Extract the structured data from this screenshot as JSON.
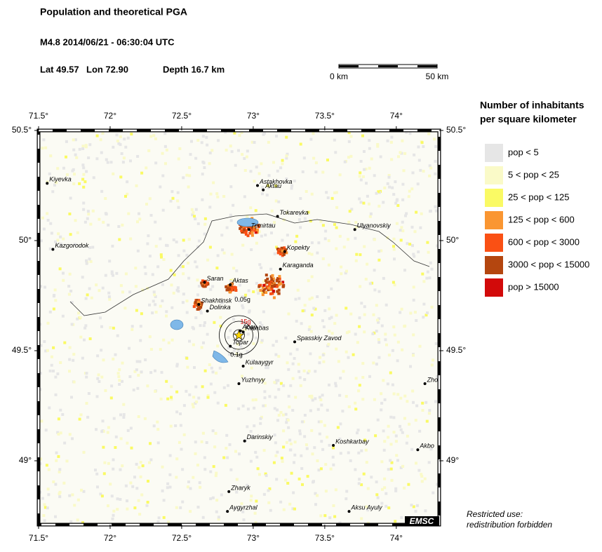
{
  "header": {
    "title": "Population and theoretical PGA",
    "event": "M4.8  2014/06/21 - 06:30:04 UTC",
    "lat": "Lat 49.57",
    "lon": "Lon  72.90",
    "depth": "Depth  16.7 km"
  },
  "scale": {
    "start": "0 km",
    "end": "50 km"
  },
  "map": {
    "lonlim": [
      71.5,
      74.3
    ],
    "latlim": [
      48.71,
      50.5
    ],
    "lonticks": [
      {
        "value": 71.5,
        "label": "71.5°"
      },
      {
        "value": 72,
        "label": "72°"
      },
      {
        "value": 72.5,
        "label": "72.5°"
      },
      {
        "value": 73,
        "label": "73°"
      },
      {
        "value": 73.5,
        "label": "73.5°"
      },
      {
        "value": 74,
        "label": "74°"
      }
    ],
    "latticks": [
      {
        "value": 50.5,
        "label": "50.5°"
      },
      {
        "value": 50,
        "label": "50°"
      },
      {
        "value": 49.5,
        "label": "49.5°"
      },
      {
        "value": 49,
        "label": "49°"
      }
    ],
    "epicenter": {
      "lon": 72.9,
      "lat": 49.57
    },
    "cities": [
      {
        "name": "Kiyevka",
        "lon": 71.56,
        "lat": 50.26
      },
      {
        "name": "Kazgorodok",
        "lon": 71.6,
        "lat": 49.96
      },
      {
        "name": "Astakhovka",
        "lon": 73.03,
        "lat": 50.25
      },
      {
        "name": "Aktau",
        "lon": 73.07,
        "lat": 50.23
      },
      {
        "name": "Tokarevka",
        "lon": 73.17,
        "lat": 50.11
      },
      {
        "name": "Temirtau",
        "lon": 72.97,
        "lat": 50.05
      },
      {
        "name": "Ulyanovskiy",
        "lon": 73.71,
        "lat": 50.05
      },
      {
        "name": "Kopekty",
        "lon": 73.22,
        "lat": 49.95
      },
      {
        "name": "Karaganda",
        "lon": 73.19,
        "lat": 49.87
      },
      {
        "name": "Saran",
        "lon": 72.66,
        "lat": 49.81
      },
      {
        "name": "Aktas",
        "lon": 72.84,
        "lat": 49.8
      },
      {
        "name": "Shakhtinsk",
        "lon": 72.62,
        "lat": 49.71
      },
      {
        "name": "Dolinka",
        "lon": 72.68,
        "lat": 49.68
      },
      {
        "name": "Abay",
        "lon": 72.91,
        "lat": 49.59
      },
      {
        "name": "Karabas",
        "lon": 72.93,
        "lat": 49.585
      },
      {
        "name": "Topar",
        "lon": 72.84,
        "lat": 49.52
      },
      {
        "name": "Spasskiy Zavod",
        "lon": 73.29,
        "lat": 49.54
      },
      {
        "name": "Kulaaygyr",
        "lon": 72.93,
        "lat": 49.43
      },
      {
        "name": "Yuzhnyy",
        "lon": 72.9,
        "lat": 49.35
      },
      {
        "name": "Darinskiy",
        "lon": 72.94,
        "lat": 49.09
      },
      {
        "name": "Koshkarbay",
        "lon": 73.56,
        "lat": 49.07
      },
      {
        "name": "Zharyk",
        "lon": 72.83,
        "lat": 48.86
      },
      {
        "name": "Aygyrzhal",
        "lon": 72.82,
        "lat": 48.77
      },
      {
        "name": "Aksu Ayuly",
        "lon": 73.67,
        "lat": 48.77
      },
      {
        "name": "Zho",
        "lon": 74.2,
        "lat": 49.35
      },
      {
        "name": "Akbo",
        "lon": 74.15,
        "lat": 49.05
      }
    ],
    "pga_labels": [
      {
        "text": "0.05g",
        "lon": 72.87,
        "lat": 49.73
      },
      {
        "text": "0.1g",
        "lon": 72.84,
        "lat": 49.48
      },
      {
        "text": "15g",
        "lon": 72.91,
        "lat": 49.63
      }
    ],
    "logo": "EMSC",
    "notice": [
      "Restricted use:",
      "redistribution forbidden"
    ]
  },
  "legend": {
    "title": [
      "Number of inhabitants",
      "per square kilometer"
    ],
    "items": [
      {
        "label": "pop < 5",
        "color": "#e6e6e6"
      },
      {
        "label": "5 < pop < 25",
        "color": "#fafac8"
      },
      {
        "label": "25 < pop < 125",
        "color": "#fafa64"
      },
      {
        "label": "125 < pop < 600",
        "color": "#fa9632"
      },
      {
        "label": "600 < pop < 3000",
        "color": "#fa5014"
      },
      {
        "label": "3000 < pop < 15000",
        "color": "#b4460f"
      },
      {
        "label": "pop > 15000",
        "color": "#d20a0a"
      }
    ]
  }
}
